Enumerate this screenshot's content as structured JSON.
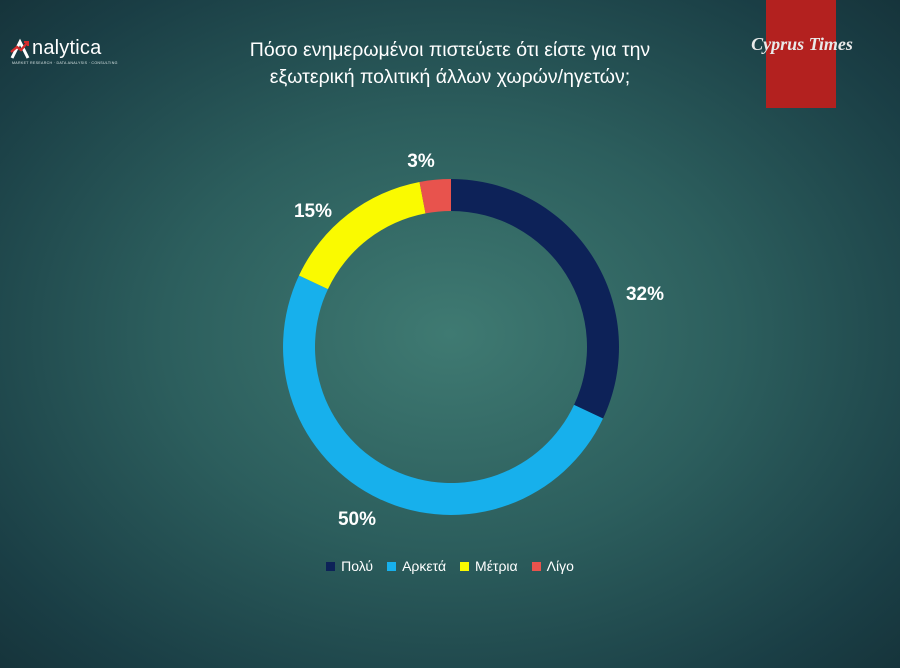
{
  "header": {
    "title_line1": "Πόσο ενημερωμένοι πιστεύετε ότι είστε για την",
    "title_line2": "εξωτερική πολιτική άλλων χωρών/ηγετών;",
    "logo_left_text": "nalytica",
    "logo_left_tagline": "MARKET RESEARCH · DATA ANALYSIS · CONSULTING",
    "logo_right_text": "Cyprus Times",
    "brand_color": "#b3211f"
  },
  "chart_data": {
    "type": "pie",
    "variant": "donut",
    "title": "Πόσο ενημερωμένοι πιστεύετε ότι είστε για την εξωτερική πολιτική άλλων χωρών/ηγετών;",
    "categories": [
      "Πολύ",
      "Αρκετά",
      "Μέτρια",
      "Λίγο"
    ],
    "values": [
      32,
      50,
      15,
      3
    ],
    "labels": [
      "32%",
      "50%",
      "15%",
      "3%"
    ],
    "colors": [
      "#0d2258",
      "#17b0ec",
      "#fafa00",
      "#e8534d"
    ],
    "legend": "bottom",
    "unit": "%"
  }
}
